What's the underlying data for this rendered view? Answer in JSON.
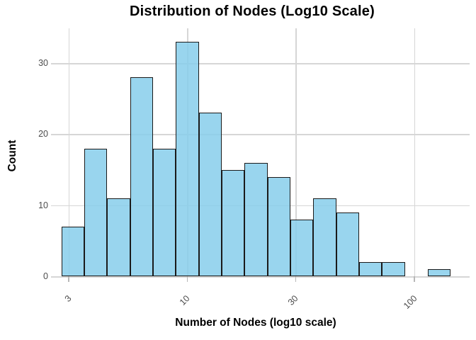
{
  "chart_data": {
    "type": "histogram",
    "title": "Distribution of Nodes (Log10 Scale)",
    "xlabel": "Number of Nodes (log10 scale)",
    "ylabel": "Count",
    "x_scale": "log10",
    "x_tick_labels": [
      "3",
      "10",
      "30",
      "100"
    ],
    "x_tick_values": [
      3,
      10,
      30,
      100
    ],
    "y_tick_labels": [
      "0",
      "10",
      "20",
      "30"
    ],
    "y_tick_values": [
      0,
      10,
      20,
      30
    ],
    "ylim": [
      0,
      35
    ],
    "counts": [
      7,
      18,
      11,
      28,
      18,
      33,
      23,
      15,
      16,
      14,
      8,
      11,
      9,
      2,
      2,
      0,
      1
    ],
    "total_observations": 216,
    "first_edge_log10": 0.446,
    "bin_width_log10": 0.10087,
    "bin_edges_approx": [
      2.79,
      3.52,
      4.45,
      5.61,
      7.07,
      8.92,
      11.26,
      14.2,
      17.91,
      22.6,
      28.51,
      35.96,
      45.37,
      57.23,
      72.2,
      91.07,
      114.9,
      144.9
    ],
    "grid": "major-only",
    "legend": "none"
  },
  "palette": {
    "bar_fill": "rgba(135,206,235,0.85)",
    "bar_border": "#1a1a1a",
    "gridline": "#d6d6d6",
    "tick_mark": "#b8b8b8",
    "tick_label": "#4d4d4d",
    "text": "#000000",
    "background": "#ffffff"
  }
}
